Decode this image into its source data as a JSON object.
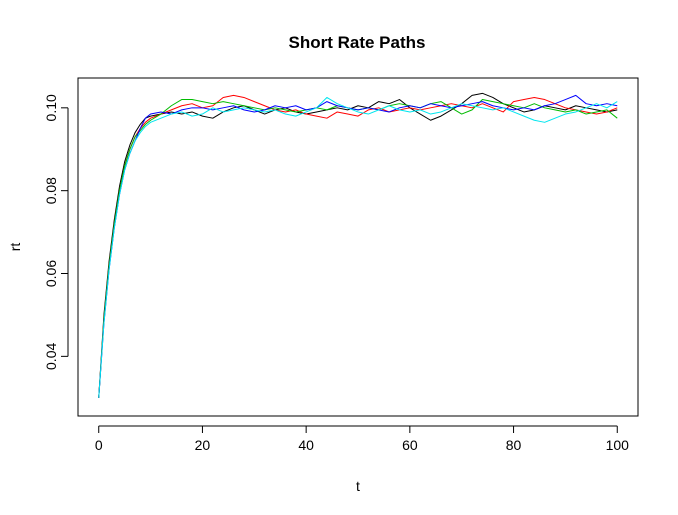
{
  "chart_data": {
    "type": "line",
    "title": "Short Rate Paths",
    "xlabel": "t",
    "ylabel": "rt",
    "xlim": [
      -4,
      104
    ],
    "ylim": [
      0.0256,
      0.1072
    ],
    "x_ticks": [
      0,
      20,
      40,
      60,
      80,
      100
    ],
    "x_tick_labels": [
      "0",
      "20",
      "40",
      "60",
      "80",
      "100"
    ],
    "y_ticks": [
      0.04,
      0.06,
      0.08,
      0.1
    ],
    "y_tick_labels": [
      "0.04",
      "0.06",
      "0.08",
      "0.10"
    ],
    "grid": false,
    "legend": "none",
    "x": [
      0,
      1,
      2,
      3,
      4,
      5,
      6,
      7,
      8,
      9,
      10,
      12,
      14,
      16,
      18,
      20,
      22,
      24,
      26,
      28,
      30,
      32,
      34,
      36,
      38,
      40,
      42,
      44,
      46,
      48,
      50,
      52,
      54,
      56,
      58,
      60,
      62,
      64,
      66,
      68,
      70,
      72,
      74,
      76,
      78,
      80,
      82,
      84,
      86,
      88,
      90,
      92,
      94,
      96,
      98,
      100
    ],
    "series": [
      {
        "color": "#000000",
        "values": [
          0.03,
          0.05,
          0.063,
          0.073,
          0.081,
          0.087,
          0.091,
          0.094,
          0.096,
          0.0975,
          0.098,
          0.0985,
          0.099,
          0.0985,
          0.099,
          0.098,
          0.0975,
          0.099,
          0.1,
          0.1005,
          0.0995,
          0.0985,
          0.0995,
          0.1,
          0.099,
          0.0985,
          0.099,
          0.0995,
          0.1,
          0.0995,
          0.1005,
          0.1,
          0.1015,
          0.101,
          0.102,
          0.1,
          0.0985,
          0.097,
          0.098,
          0.0995,
          0.101,
          0.103,
          0.1035,
          0.1025,
          0.101,
          0.1,
          0.099,
          0.0995,
          0.1005,
          0.1,
          0.0995,
          0.1005,
          0.1,
          0.0995,
          0.099,
          0.0995
        ]
      },
      {
        "color": "#ff0000",
        "values": [
          0.03,
          0.049,
          0.062,
          0.072,
          0.08,
          0.086,
          0.09,
          0.093,
          0.095,
          0.0965,
          0.0975,
          0.0985,
          0.0995,
          0.1005,
          0.101,
          0.1,
          0.1005,
          0.1025,
          0.103,
          0.1025,
          0.1015,
          0.1005,
          0.0995,
          0.099,
          0.0995,
          0.0985,
          0.098,
          0.0975,
          0.099,
          0.0985,
          0.098,
          0.0995,
          0.1,
          0.099,
          0.0995,
          0.1,
          0.0995,
          0.1,
          0.1005,
          0.101,
          0.1005,
          0.1,
          0.101,
          0.1,
          0.099,
          0.1015,
          0.102,
          0.1025,
          0.102,
          0.101,
          0.1,
          0.0995,
          0.099,
          0.0985,
          0.099,
          0.1
        ]
      },
      {
        "color": "#00bb00",
        "values": [
          0.03,
          0.049,
          0.062,
          0.072,
          0.08,
          0.086,
          0.09,
          0.093,
          0.0945,
          0.096,
          0.097,
          0.0985,
          0.1005,
          0.102,
          0.102,
          0.1015,
          0.101,
          0.1015,
          0.101,
          0.1005,
          0.1,
          0.0995,
          0.1,
          0.0995,
          0.099,
          0.0995,
          0.1,
          0.0995,
          0.1005,
          0.1,
          0.0995,
          0.1,
          0.0995,
          0.1005,
          0.101,
          0.1005,
          0.1,
          0.101,
          0.1015,
          0.1,
          0.0985,
          0.0995,
          0.102,
          0.1015,
          0.101,
          0.1005,
          0.1,
          0.101,
          0.1,
          0.0995,
          0.099,
          0.0995,
          0.0985,
          0.099,
          0.0995,
          0.0975
        ]
      },
      {
        "color": "#0000ff",
        "values": [
          0.03,
          0.048,
          0.061,
          0.071,
          0.079,
          0.085,
          0.089,
          0.092,
          0.095,
          0.0975,
          0.0985,
          0.099,
          0.0985,
          0.0995,
          0.1,
          0.1,
          0.0995,
          0.1,
          0.1005,
          0.0995,
          0.099,
          0.0995,
          0.1005,
          0.1,
          0.1005,
          0.0995,
          0.1,
          0.1015,
          0.1005,
          0.1,
          0.0995,
          0.1,
          0.0995,
          0.099,
          0.1,
          0.1005,
          0.1,
          0.101,
          0.1005,
          0.1,
          0.1005,
          0.101,
          0.1015,
          0.1005,
          0.1,
          0.0995,
          0.1,
          0.0995,
          0.1005,
          0.101,
          0.102,
          0.103,
          0.101,
          0.1005,
          0.101,
          0.1005
        ]
      },
      {
        "color": "#00e5ee",
        "values": [
          0.03,
          0.048,
          0.061,
          0.071,
          0.079,
          0.085,
          0.089,
          0.092,
          0.094,
          0.0955,
          0.0965,
          0.0975,
          0.0985,
          0.099,
          0.098,
          0.0985,
          0.1,
          0.099,
          0.0995,
          0.1,
          0.0995,
          0.099,
          0.0995,
          0.0985,
          0.098,
          0.099,
          0.1,
          0.1025,
          0.101,
          0.1,
          0.099,
          0.0985,
          0.0995,
          0.1005,
          0.0995,
          0.099,
          0.0995,
          0.0985,
          0.099,
          0.1,
          0.101,
          0.1005,
          0.1,
          0.0995,
          0.1,
          0.099,
          0.098,
          0.097,
          0.0965,
          0.0975,
          0.0985,
          0.099,
          0.1,
          0.101,
          0.1,
          0.1015
        ]
      }
    ]
  }
}
